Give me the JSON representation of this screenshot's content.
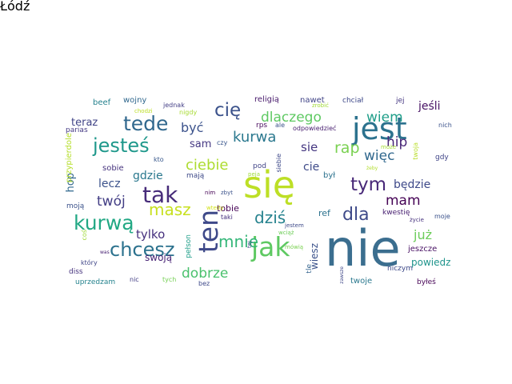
{
  "words": [
    {
      "text": "nie",
      "color": "#3b6e8f"
    },
    {
      "text": "się",
      "color": "#bddf26"
    },
    {
      "text": "jest",
      "color": "#2c728e"
    },
    {
      "text": "jak",
      "color": "#5ec962"
    },
    {
      "text": "ten",
      "color": "#3e4989"
    },
    {
      "text": "tak",
      "color": "#472c7a"
    },
    {
      "text": "kurwą",
      "color": "#22a884"
    },
    {
      "text": "tede",
      "color": "#31688e"
    },
    {
      "text": "jesteś",
      "color": "#1f988b"
    },
    {
      "text": "chcesz",
      "color": "#2c728e"
    },
    {
      "text": "tym",
      "color": "#482878"
    },
    {
      "text": "cię",
      "color": "#3b528b"
    },
    {
      "text": "dla",
      "color": "#3e4a89"
    },
    {
      "text": "mnie",
      "color": "#35b779"
    },
    {
      "text": "masz",
      "color": "#c8e020"
    },
    {
      "text": "dziś",
      "color": "#26828e"
    },
    {
      "text": "ciebie",
      "color": "#addc30"
    },
    {
      "text": "kurwa",
      "color": "#2a788e"
    },
    {
      "text": "dobrze",
      "color": "#4ac16d"
    },
    {
      "text": "dlaczego",
      "color": "#5ec962"
    },
    {
      "text": "rap",
      "color": "#7ad151"
    },
    {
      "text": "mam",
      "color": "#440154"
    },
    {
      "text": "twój",
      "color": "#433e85"
    },
    {
      "text": "hip",
      "color": "#482677"
    },
    {
      "text": "wiem",
      "color": "#1f9e89"
    },
    {
      "text": "więc",
      "color": "#31688e"
    },
    {
      "text": "być",
      "color": "#3b528b"
    },
    {
      "text": "sie",
      "color": "#453781"
    },
    {
      "text": "gdzie",
      "color": "#2a788e"
    },
    {
      "text": "będzie",
      "color": "#3e4989"
    },
    {
      "text": "już",
      "color": "#6ccd5a"
    },
    {
      "text": "tylko",
      "color": "#46307e"
    },
    {
      "text": "lecz",
      "color": "#3b528b"
    },
    {
      "text": "teraz",
      "color": "#414487"
    },
    {
      "text": "cie",
      "color": "#3e4a89"
    },
    {
      "text": "sam",
      "color": "#453882"
    },
    {
      "text": "jeśli",
      "color": "#471164"
    },
    {
      "text": "hop",
      "color": "#31688e"
    },
    {
      "text": "swoją",
      "color": "#482475"
    },
    {
      "text": "powiedz",
      "color": "#1f948c"
    },
    {
      "text": "wiesz",
      "color": "#3b528b"
    },
    {
      "text": "tobie",
      "color": "#440154"
    },
    {
      "text": "ref",
      "color": "#2c728e"
    },
    {
      "text": "jeszcze",
      "color": "#471063"
    },
    {
      "text": "był",
      "color": "#2c728e"
    },
    {
      "text": "sobie",
      "color": "#46337e"
    },
    {
      "text": "twoje",
      "color": "#2a788e"
    },
    {
      "text": "nawet",
      "color": "#414487"
    },
    {
      "text": "wojny",
      "color": "#31688e"
    },
    {
      "text": "religią",
      "color": "#481a6c"
    },
    {
      "text": "beef",
      "color": "#26828e"
    },
    {
      "text": "jednak",
      "color": "#433e85"
    },
    {
      "text": "parias",
      "color": "#443983"
    },
    {
      "text": "rps",
      "color": "#46085c"
    },
    {
      "text": "odpowiedzieć",
      "color": "#481f70"
    },
    {
      "text": "moją",
      "color": "#3b528b"
    },
    {
      "text": "kwestię",
      "color": "#482071"
    },
    {
      "text": "uprzedzam",
      "color": "#25838e"
    },
    {
      "text": "niczym",
      "color": "#3e4a89"
    },
    {
      "text": "byłeś",
      "color": "#440154"
    },
    {
      "text": "diss",
      "color": "#46337e"
    },
    {
      "text": "jej",
      "color": "#453781"
    },
    {
      "text": "chciał",
      "color": "#3e4989"
    },
    {
      "text": "nich",
      "color": "#3b528b"
    },
    {
      "text": "gdy",
      "color": "#404588"
    },
    {
      "text": "ale",
      "color": "#3b528b"
    },
    {
      "text": "czy",
      "color": "#39568c"
    },
    {
      "text": "kto",
      "color": "#38588c"
    },
    {
      "text": "nigdy",
      "color": "#a8db34"
    },
    {
      "text": "mają",
      "color": "#3e4a89"
    },
    {
      "text": "przypierdole",
      "color": "#b5de2b"
    },
    {
      "text": "pełson",
      "color": "#1f9e89"
    },
    {
      "text": "tle",
      "color": "#33638d"
    },
    {
      "text": "który",
      "color": "#404688"
    },
    {
      "text": "nic",
      "color": "#433e85"
    },
    {
      "text": "bez",
      "color": "#3e4989"
    },
    {
      "text": "tych",
      "color": "#75d054"
    },
    {
      "text": "moje",
      "color": "#3b528b"
    },
    {
      "text": "życie",
      "color": "#46327e"
    },
    {
      "text": "chodzi",
      "color": "#bddf26"
    },
    {
      "text": "zrobić",
      "color": "#a2da37"
    },
    {
      "text": "twoja",
      "color": "#b8de29"
    },
    {
      "text": "może",
      "color": "#a5db36"
    },
    {
      "text": "wtedy",
      "color": "#d2e21b"
    },
    {
      "text": "zbyt",
      "color": "#3b528b"
    },
    {
      "text": "nim",
      "color": "#440154"
    },
    {
      "text": "taki",
      "color": "#46307e"
    },
    {
      "text": "jestem",
      "color": "#3e4a89"
    },
    {
      "text": "wciąż",
      "color": "#6ece58"
    },
    {
      "text": "mówią",
      "color": "#7ad151"
    },
    {
      "text": "pod",
      "color": "#414487"
    },
    {
      "text": "tej",
      "color": "#404588"
    },
    {
      "text": "coś",
      "color": "#a0da39"
    },
    {
      "text": "peja",
      "color": "#9fda3a"
    },
    {
      "text": "siebie",
      "color": "#3e4989"
    },
    {
      "text": "was",
      "color": "#482173"
    },
    {
      "text": "zawsze",
      "color": "#3f4788"
    },
    {
      "text": "żeby",
      "color": "#b2dd2d"
    },
    {
      "text": "Łódź",
      "color": "#b5de2b"
    }
  ]
}
